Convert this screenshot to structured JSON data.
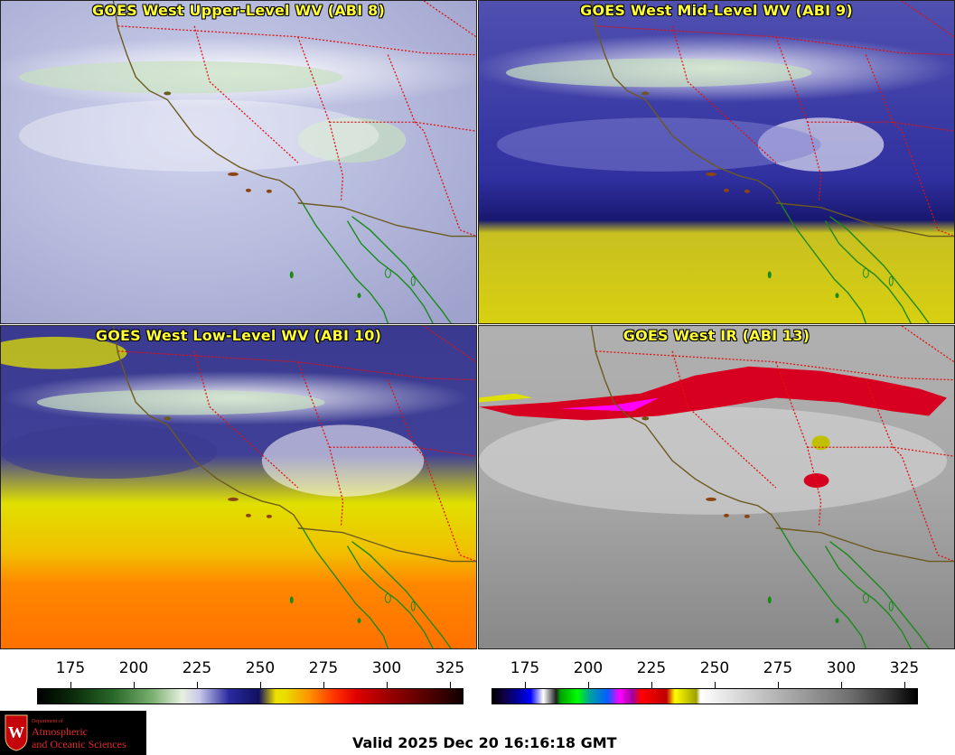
{
  "panels": [
    {
      "title": "GOES West Upper-Level WV (ABI 8)"
    },
    {
      "title": "GOES West Mid-Level WV (ABI 9)"
    },
    {
      "title": "GOES West Low-Level WV (ABI 10)"
    },
    {
      "title": "GOES West IR (ABI 13)"
    }
  ],
  "colorbars": {
    "wv": {
      "ticks": [
        "175",
        "200",
        "225",
        "250",
        "275",
        "300",
        "325"
      ]
    },
    "ir": {
      "ticks": [
        "175",
        "200",
        "225",
        "250",
        "275",
        "300",
        "325"
      ]
    }
  },
  "logo": {
    "line1": "Department of",
    "line2": "Atmospheric",
    "line3": "and Oceanic Sciences"
  },
  "valid_time": "Valid 2025 Dec 20 16:16:18 GMT",
  "colors": {
    "title_yellow": "#ffff33",
    "coast": "#6b5a1e",
    "borders": "#e01010",
    "mexico_coast": "#1a8a1a"
  }
}
